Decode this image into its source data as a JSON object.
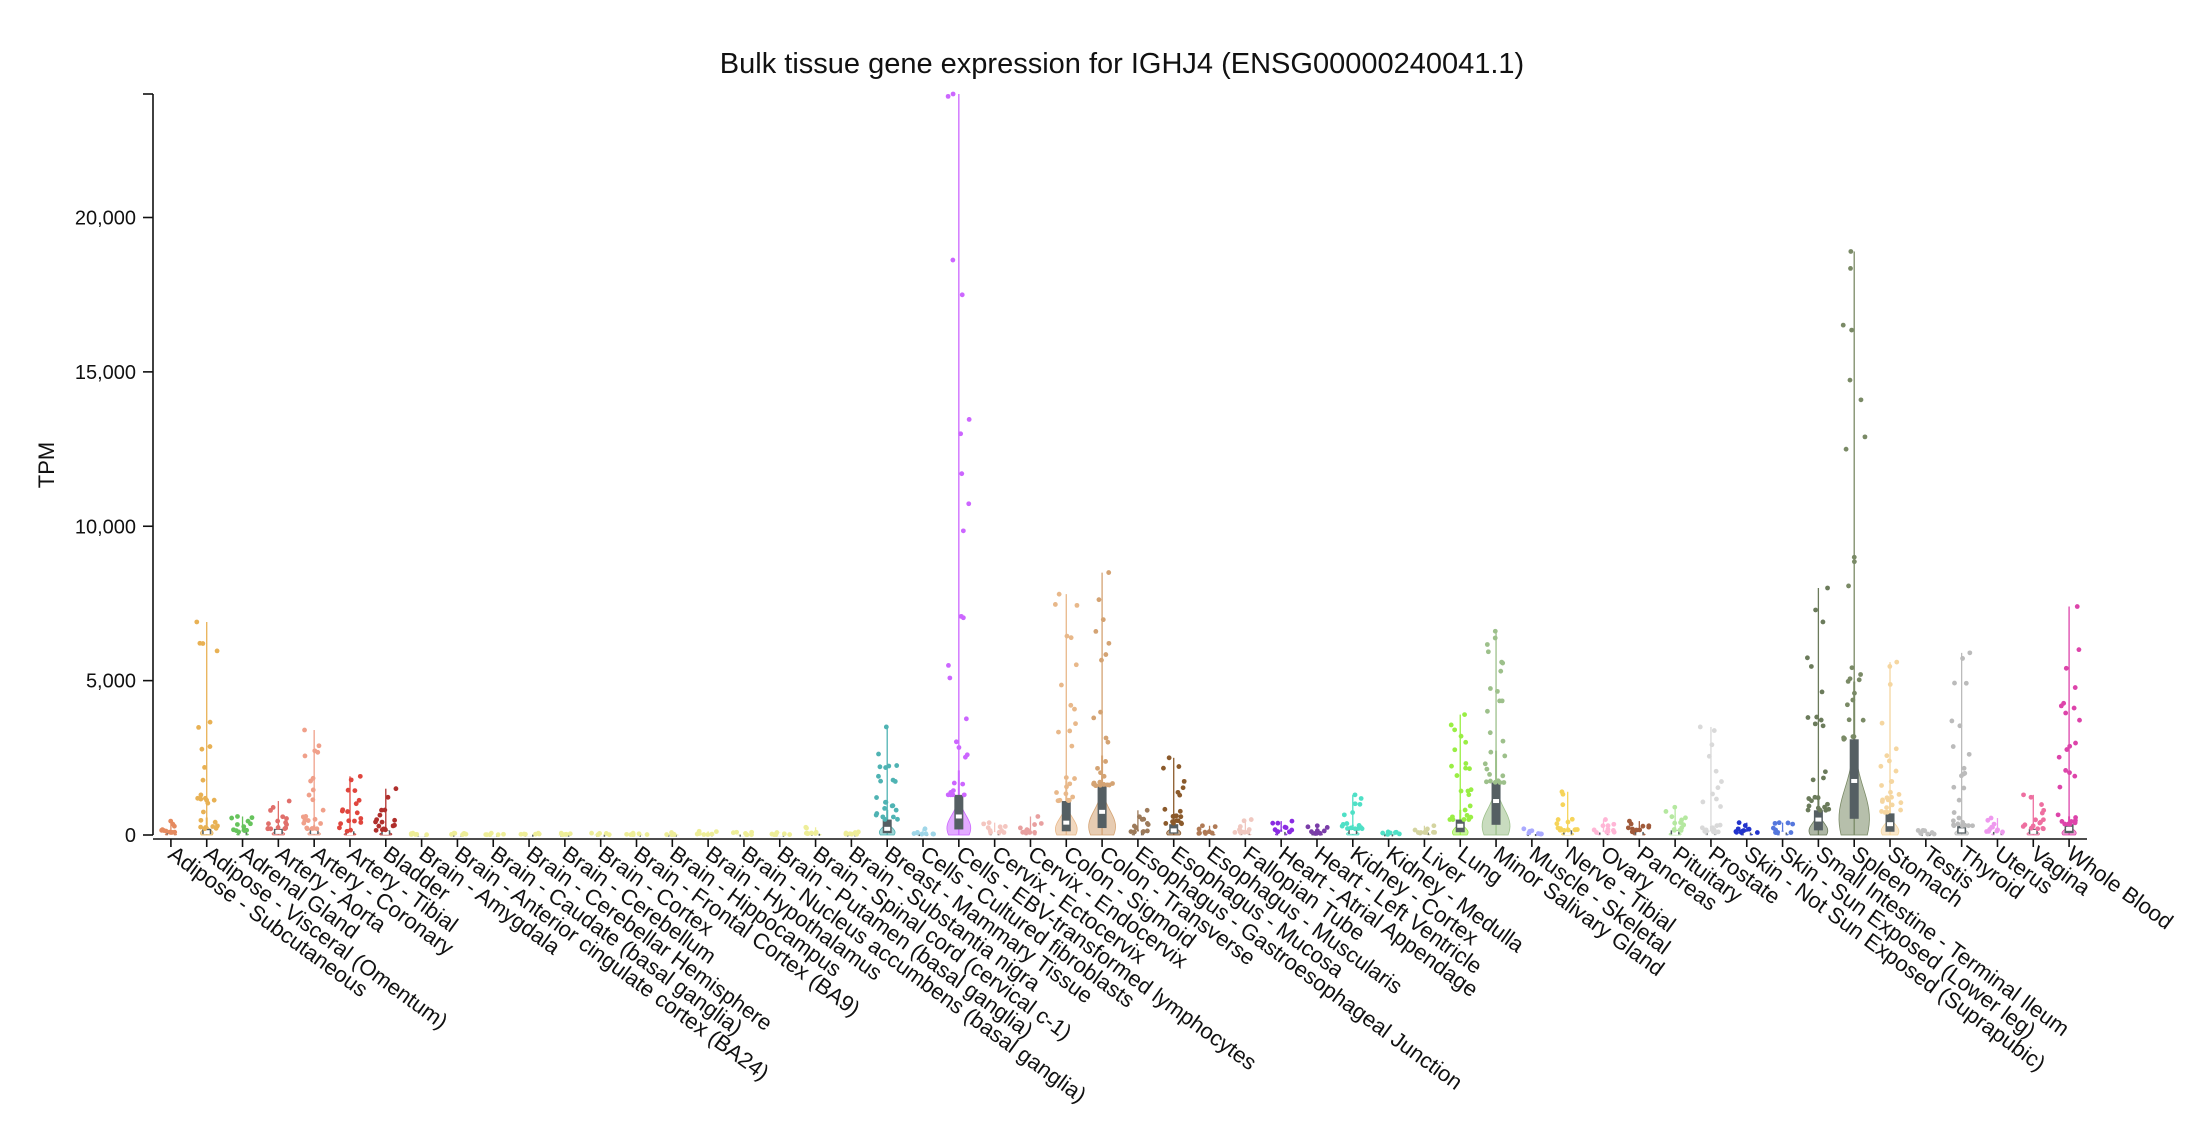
{
  "chart_data": {
    "type": "violin",
    "title": "Bulk tissue gene expression for IGHJ4 (ENSG00000240041.1)",
    "xlabel": "",
    "ylabel": "TPM",
    "ylim": [
      0,
      24000
    ],
    "yticks": [
      0,
      5000,
      10000,
      15000,
      20000
    ],
    "ytick_labels": [
      "0",
      "5,000",
      "10,000",
      "15,000",
      "20,000"
    ],
    "categories": [
      "Adipose - Subcutaneous",
      "Adipose - Visceral (Omentum)",
      "Adrenal Gland",
      "Artery - Aorta",
      "Artery - Coronary",
      "Artery - Tibial",
      "Bladder",
      "Brain - Amygdala",
      "Brain - Anterior cingulate cortex (BA24)",
      "Brain - Caudate (basal ganglia)",
      "Brain - Cerebellar Hemisphere",
      "Brain - Cerebellum",
      "Brain - Cortex",
      "Brain - Frontal Cortex (BA9)",
      "Brain - Hippocampus",
      "Brain - Hypothalamus",
      "Brain - Nucleus accumbens (basal ganglia)",
      "Brain - Putamen (basal ganglia)",
      "Brain - Spinal cord (cervical c-1)",
      "Brain - Substantia nigra",
      "Breast - Mammary Tissue",
      "Cells - Cultured fibroblasts",
      "Cells - EBV-transformed lymphocytes",
      "Cervix - Ectocervix",
      "Cervix - Endocervix",
      "Colon - Sigmoid",
      "Colon - Transverse",
      "Esophagus - Gastroesophageal Junction",
      "Esophagus - Mucosa",
      "Esophagus - Muscularis",
      "Fallopian Tube",
      "Heart - Atrial Appendage",
      "Heart - Left Ventricle",
      "Kidney - Cortex",
      "Kidney - Medulla",
      "Liver",
      "Lung",
      "Minor Salivary Gland",
      "Muscle - Skeletal",
      "Nerve - Tibial",
      "Ovary",
      "Pancreas",
      "Pituitary",
      "Prostate",
      "Skin - Not Sun Exposed (Suprapubic)",
      "Skin - Sun Exposed (Lower leg)",
      "Small Intestine - Terminal Ileum",
      "Spleen",
      "Stomach",
      "Testis",
      "Thyroid",
      "Uterus",
      "Vagina",
      "Whole Blood"
    ],
    "colors": [
      "#e58a5f",
      "#e8b154",
      "#66c35c",
      "#e06f6b",
      "#f0a08a",
      "#e0453d",
      "#b02f2c",
      "#eeee99",
      "#eeee99",
      "#eeee99",
      "#eeee99",
      "#eeee99",
      "#eeee99",
      "#eeee99",
      "#eeee99",
      "#eeee99",
      "#eeee99",
      "#eeee99",
      "#eeee99",
      "#eeee99",
      "#4fb3b3",
      "#9fd6e8",
      "#cc66ff",
      "#f4c6c0",
      "#e8a0a0",
      "#e8b88a",
      "#d4a373",
      "#9c7a5a",
      "#8b5a2b",
      "#b07a55",
      "#f0c8c0",
      "#8a2be2",
      "#7a3da8",
      "#4fe0c6",
      "#4fe0c6",
      "#d4d4a0",
      "#99ee44",
      "#9dc08b",
      "#aaaaff",
      "#f6d45a",
      "#ffb6d6",
      "#a05a3a",
      "#b5e8a0",
      "#d9d9d9",
      "#2233cc",
      "#5577dd",
      "#6b7b5b",
      "#7a8a66",
      "#f5d6a0",
      "#c0c0c0",
      "#bbbbbb",
      "#ee99ee",
      "#ee6fa0",
      "#dd44aa"
    ],
    "series": [
      {
        "name": "max",
        "values": [
          450,
          6900,
          600,
          1100,
          3400,
          1900,
          1500,
          60,
          60,
          60,
          60,
          60,
          60,
          60,
          80,
          120,
          90,
          80,
          250,
          100,
          3500,
          200,
          24000,
          400,
          600,
          7800,
          8500,
          800,
          2500,
          300,
          500,
          450,
          300,
          1300,
          100,
          300,
          3900,
          6600,
          200,
          1400,
          500,
          450,
          900,
          3500,
          400,
          400,
          8000,
          18900,
          5600,
          150,
          5900,
          550,
          1300,
          7400
        ]
      },
      {
        "name": "q3",
        "values": [
          80,
          200,
          100,
          200,
          200,
          120,
          150,
          10,
          10,
          10,
          10,
          10,
          10,
          10,
          10,
          15,
          10,
          10,
          40,
          15,
          500,
          30,
          1300,
          60,
          80,
          1100,
          1600,
          100,
          350,
          50,
          80,
          100,
          50,
          200,
          20,
          80,
          500,
          1700,
          30,
          150,
          80,
          100,
          150,
          100,
          80,
          80,
          800,
          3100,
          700,
          30,
          300,
          100,
          200,
          350
        ]
      },
      {
        "name": "median",
        "values": [
          40,
          90,
          50,
          100,
          100,
          60,
          70,
          5,
          5,
          5,
          5,
          5,
          5,
          5,
          5,
          8,
          5,
          5,
          20,
          8,
          200,
          10,
          600,
          30,
          40,
          400,
          750,
          50,
          150,
          25,
          40,
          40,
          20,
          100,
          10,
          30,
          300,
          1100,
          10,
          60,
          40,
          50,
          70,
          50,
          40,
          40,
          500,
          1750,
          350,
          10,
          150,
          50,
          100,
          200
        ]
      }
    ]
  }
}
